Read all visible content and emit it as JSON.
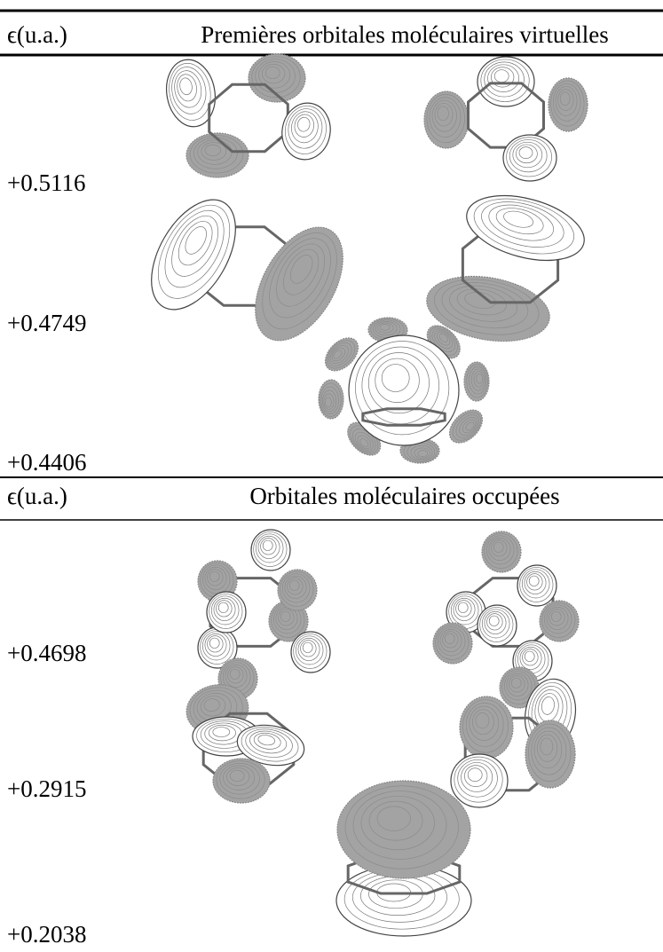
{
  "table": {
    "sections": [
      {
        "header": [
          "ϵ(u.a.)",
          "Premières orbitales moléculaires virtuelles"
        ],
        "energies": [
          "+0.5116",
          "+0.4749",
          "+0.4406"
        ]
      },
      {
        "header": [
          "ϵ(u.a.)",
          "Orbitales moléculaires occupées"
        ],
        "energies": [
          "+0.4698",
          "+0.2915",
          "+0.2038"
        ]
      }
    ]
  }
}
